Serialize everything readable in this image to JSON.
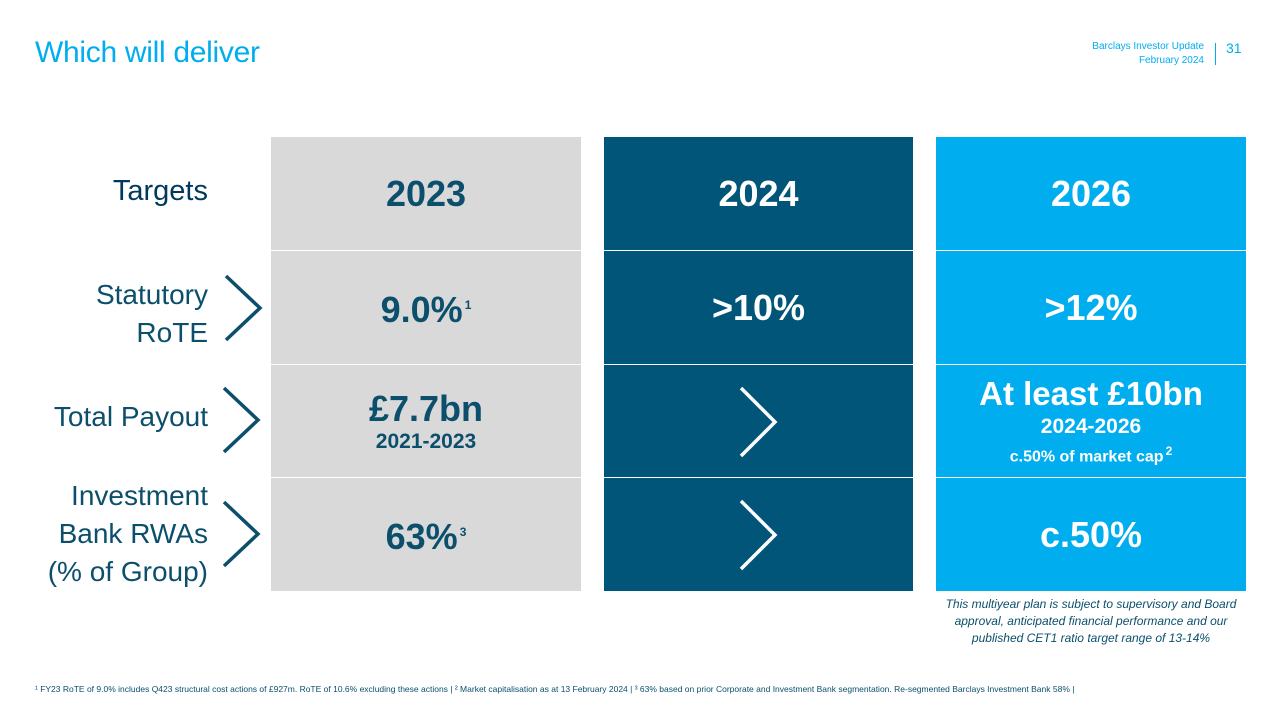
{
  "header": {
    "title": "Which will deliver",
    "doc_title": "Barclays Investor Update",
    "doc_date": "February 2024",
    "page_number": "31"
  },
  "rows": {
    "targets": "Targets",
    "rote_line1": "Statutory",
    "rote_line2": "RoTE",
    "payout": "Total Payout",
    "ib_line1": "Investment",
    "ib_line2": "Bank RWAs",
    "ib_line3": "(% of Group)"
  },
  "columns": {
    "y2023": {
      "year": "2023",
      "rote": "9.0%",
      "rote_sup": "1",
      "payout": "£7.7bn",
      "payout_sub": "2021-2023",
      "ib": "63%",
      "ib_sup": "3"
    },
    "y2024": {
      "year": "2024",
      "rote": ">10%"
    },
    "y2026": {
      "year": "2026",
      "rote": ">12%",
      "payout": "At least £10bn",
      "payout_sub": "2024-2026",
      "payout_note": "c.50% of market cap",
      "payout_note_sup": "2",
      "ib": "c.50%"
    }
  },
  "note": "This multiyear plan is subject to supervisory and Board approval, anticipated financial performance and our published CET1 ratio target range of 13-14%",
  "footnote": "¹ FY23 RoTE of 9.0% includes Q423 structural cost actions of £927m. RoTE of 10.6% excluding these actions | ² Market capitalisation as at 13 February 2024 | ³ 63% based on prior Corporate and Investment Bank segmentation. Re-segmented Barclays Investment Bank 58% |",
  "colors": {
    "accent": "#00AEEF",
    "navy": "#005579",
    "grey": "#d9d9d9",
    "text": "#0b4f6c"
  },
  "icons": [
    "chevron-right-icon"
  ]
}
